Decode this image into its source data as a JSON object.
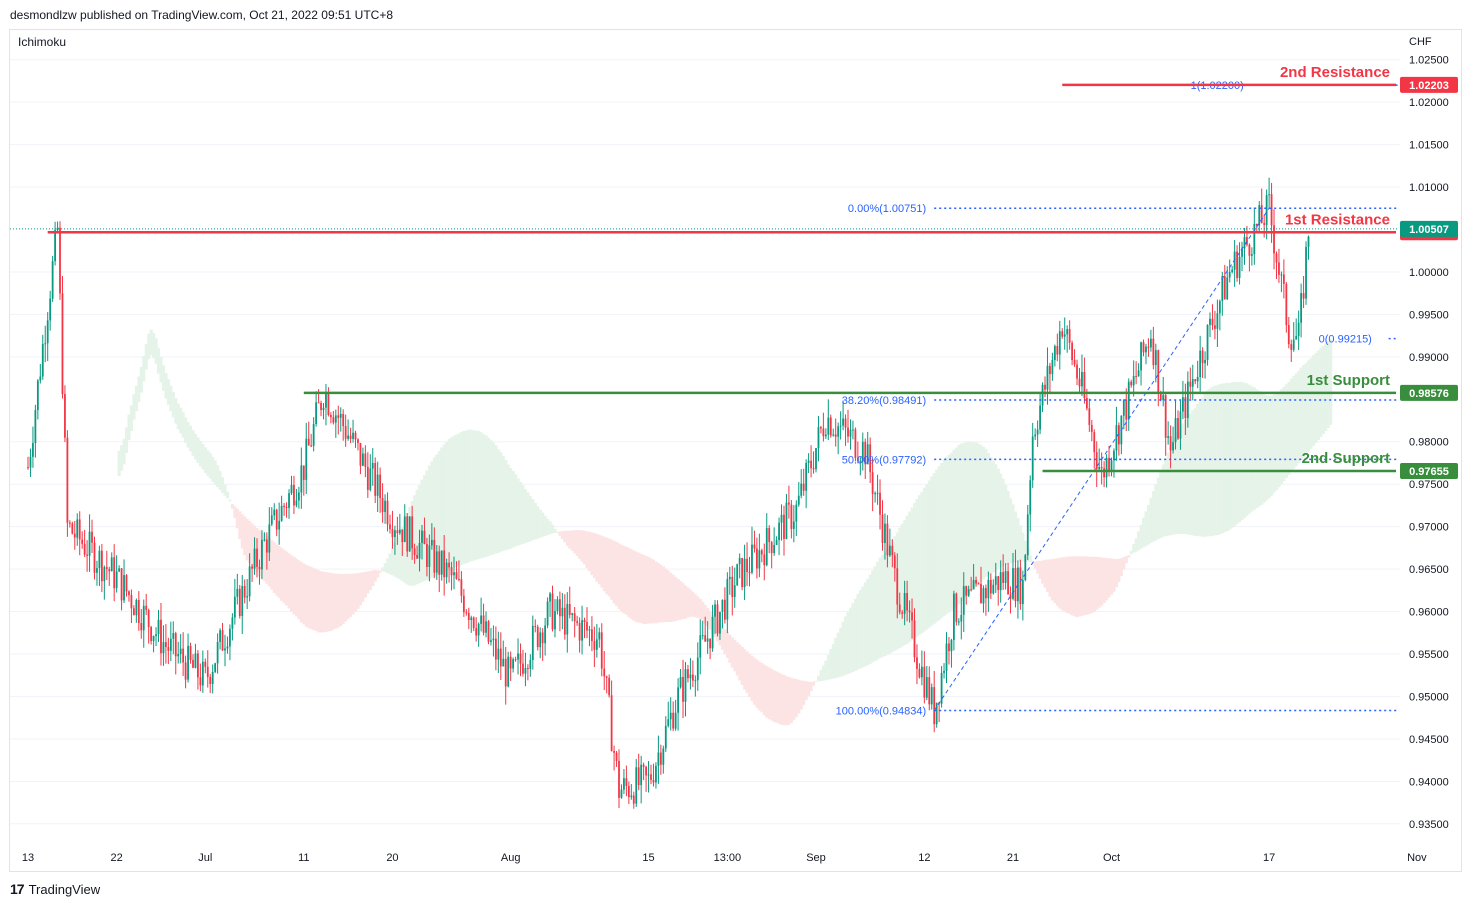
{
  "header": {
    "publisher": "desmondlzw published on TradingView.com, Oct 21, 2022 09:51 UTC+8"
  },
  "footer": {
    "brand": "TradingView",
    "logo_icon": "tradingview-logo-icon"
  },
  "indicator_label": "Ichimoku",
  "chart_data": {
    "type": "candlestick",
    "currency": "CHF",
    "y_ticks": [
      "1.02500",
      "1.02000",
      "1.01500",
      "1.01000",
      "1.00000",
      "0.99500",
      "0.99000",
      "0.98000",
      "0.97500",
      "0.97000",
      "0.96500",
      "0.96000",
      "0.95500",
      "0.95000",
      "0.94500",
      "0.94000",
      "0.93500"
    ],
    "x_ticks": [
      "13",
      "22",
      "Jul",
      "11",
      "20",
      "Aug",
      "15",
      "13:00",
      "Sep",
      "12",
      "21",
      "Oct",
      "17",
      "Nov"
    ],
    "ylim": [
      0.9325,
      1.0285
    ],
    "price_path": [
      {
        "date": "Jun 13",
        "price": 0.977
      },
      {
        "date": "Jun 15",
        "price": 0.996
      },
      {
        "date": "Jun 16",
        "price": 1.005
      },
      {
        "date": "Jun 17",
        "price": 0.97
      },
      {
        "date": "Jun 22",
        "price": 0.964
      },
      {
        "date": "Jun 27",
        "price": 0.956
      },
      {
        "date": "Jul 1",
        "price": 0.952
      },
      {
        "date": "Jul 7",
        "price": 0.968
      },
      {
        "date": "Jul 11",
        "price": 0.977
      },
      {
        "date": "Jul 13",
        "price": 0.986
      },
      {
        "date": "Jul 15",
        "price": 0.982
      },
      {
        "date": "Jul 20",
        "price": 0.971
      },
      {
        "date": "Jul 26",
        "price": 0.964
      },
      {
        "date": "Aug 1",
        "price": 0.952
      },
      {
        "date": "Aug 5",
        "price": 0.96
      },
      {
        "date": "Aug 10",
        "price": 0.957
      },
      {
        "date": "Aug 12",
        "price": 0.939
      },
      {
        "date": "Aug 15",
        "price": 0.94
      },
      {
        "date": "Aug 18",
        "price": 0.95
      },
      {
        "date": "Aug 24",
        "price": 0.964
      },
      {
        "date": "Aug 30",
        "price": 0.972
      },
      {
        "date": "Sep 2",
        "price": 0.983
      },
      {
        "date": "Sep 6",
        "price": 0.979
      },
      {
        "date": "Sep 9",
        "price": 0.964
      },
      {
        "date": "Sep 12",
        "price": 0.952
      },
      {
        "date": "Sep 13",
        "price": 0.9483
      },
      {
        "date": "Sep 15",
        "price": 0.96
      },
      {
        "date": "Sep 20",
        "price": 0.964
      },
      {
        "date": "Sep 22",
        "price": 0.963
      },
      {
        "date": "Sep 23",
        "price": 0.981
      },
      {
        "date": "Sep 26",
        "price": 0.994
      },
      {
        "date": "Sep 28",
        "price": 0.986
      },
      {
        "date": "Sep 30",
        "price": 0.976
      },
      {
        "date": "Oct 3",
        "price": 0.986
      },
      {
        "date": "Oct 5",
        "price": 0.993
      },
      {
        "date": "Oct 7",
        "price": 0.979
      },
      {
        "date": "Oct 10",
        "price": 0.99
      },
      {
        "date": "Oct 13",
        "price": 1.0
      },
      {
        "date": "Oct 17",
        "price": 1.0075
      },
      {
        "date": "Oct 19",
        "price": 0.993
      },
      {
        "date": "Oct 20",
        "price": 0.9921
      },
      {
        "date": "Oct 21",
        "price": 1.005
      }
    ],
    "levels": [
      {
        "name": "2nd Resistance",
        "price": 1.02203,
        "label": "1.02203",
        "color": "#f23645",
        "start_date": "Sep 26"
      },
      {
        "name": "1st Resistance",
        "price": 1.00467,
        "label": "1.00467",
        "color": "#f23645",
        "start_date": "Jun 15"
      },
      {
        "name": "1st Support",
        "price": 0.98576,
        "label": "0.98576",
        "color": "#388e3c",
        "start_date": "Jul 11"
      },
      {
        "name": "2nd Support",
        "price": 0.97655,
        "label": "0.97655",
        "color": "#388e3c",
        "start_date": "Sep 24"
      }
    ],
    "current_price": {
      "price": 1.00507,
      "label": "1.00507",
      "color": "#089981"
    },
    "fib_retracement": {
      "color": "#2962ff",
      "levels": [
        {
          "label": "0.00%(1.00751)",
          "price": 1.00751,
          "start_date": "Sep 13"
        },
        {
          "label": "38.20%(0.98491)",
          "price": 0.98491,
          "start_date": "Sep 13"
        },
        {
          "label": "50.00%(0.97792)",
          "price": 0.97792,
          "start_date": "Sep 13"
        },
        {
          "label": "100.00%(0.94834)",
          "price": 0.94834,
          "start_date": "Sep 13"
        }
      ]
    },
    "fib_extension": {
      "color": "#2962ff",
      "levels": [
        {
          "label": "1(1.02200)",
          "price": 1.022,
          "start_date": "Oct 7"
        },
        {
          "label": "0(0.99215)",
          "price": 0.99215,
          "start_date": "Oct 20"
        }
      ]
    },
    "colors": {
      "up": "#089981",
      "down": "#f23645",
      "cloud_bull": "#e5f3e8",
      "cloud_bear": "#fde4e4",
      "grid": "#f0f3fa",
      "axis_text": "#131722"
    }
  }
}
